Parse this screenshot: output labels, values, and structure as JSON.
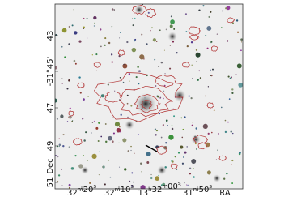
{
  "axes": {
    "x_label": "RA",
    "y_label": "Dec",
    "x_ticks": [
      "32m20s",
      "32m10s",
      "13h32m00s",
      "31m50s"
    ],
    "y_ticks": [
      "43",
      "-31°45'",
      "47",
      "49",
      "51"
    ]
  }
}
